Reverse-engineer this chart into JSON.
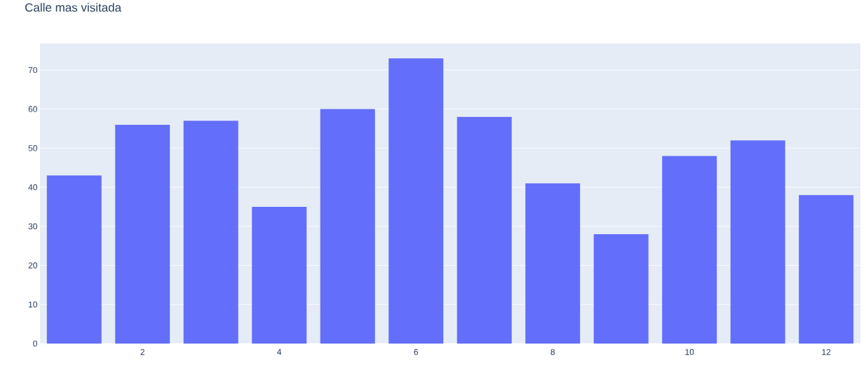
{
  "chart_data": {
    "type": "bar",
    "title": "Calle mas visitada",
    "x": [
      1,
      2,
      3,
      4,
      5,
      6,
      7,
      8,
      9,
      10,
      11,
      12
    ],
    "values": [
      43,
      56,
      57,
      35,
      60,
      73,
      58,
      41,
      28,
      48,
      52,
      38
    ],
    "color": "#636efa",
    "xlim": [
      0.5,
      12.5
    ],
    "xticks": [
      2,
      4,
      6,
      8,
      10,
      12
    ],
    "ylim": [
      0,
      76.8
    ],
    "yticks": [
      0,
      10,
      20,
      30,
      40,
      50,
      60,
      70
    ],
    "grid": "y"
  }
}
